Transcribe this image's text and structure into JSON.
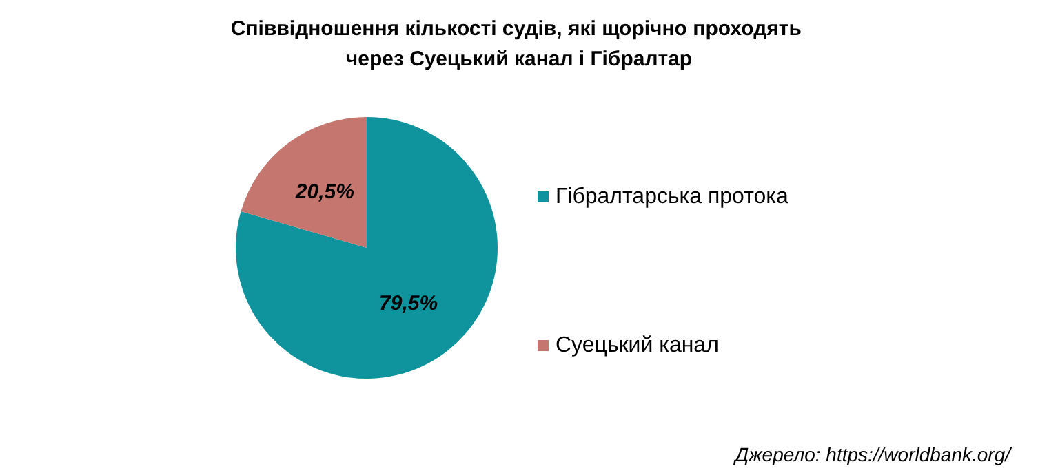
{
  "chart_data": {
    "type": "pie",
    "title": "Співвідношення кількості судів, які щорічно проходять через Суецький канал і Гібралтар",
    "categories": [
      "Гібралтарська протока",
      "Суецький канал"
    ],
    "values": [
      79.5,
      20.5
    ],
    "colors": [
      "#0f939d",
      "#c4766f"
    ],
    "value_labels": [
      "79,5%",
      "20,5%"
    ],
    "legend": "right",
    "annotations": [
      "Джерело: https://worldbank.org/"
    ]
  }
}
